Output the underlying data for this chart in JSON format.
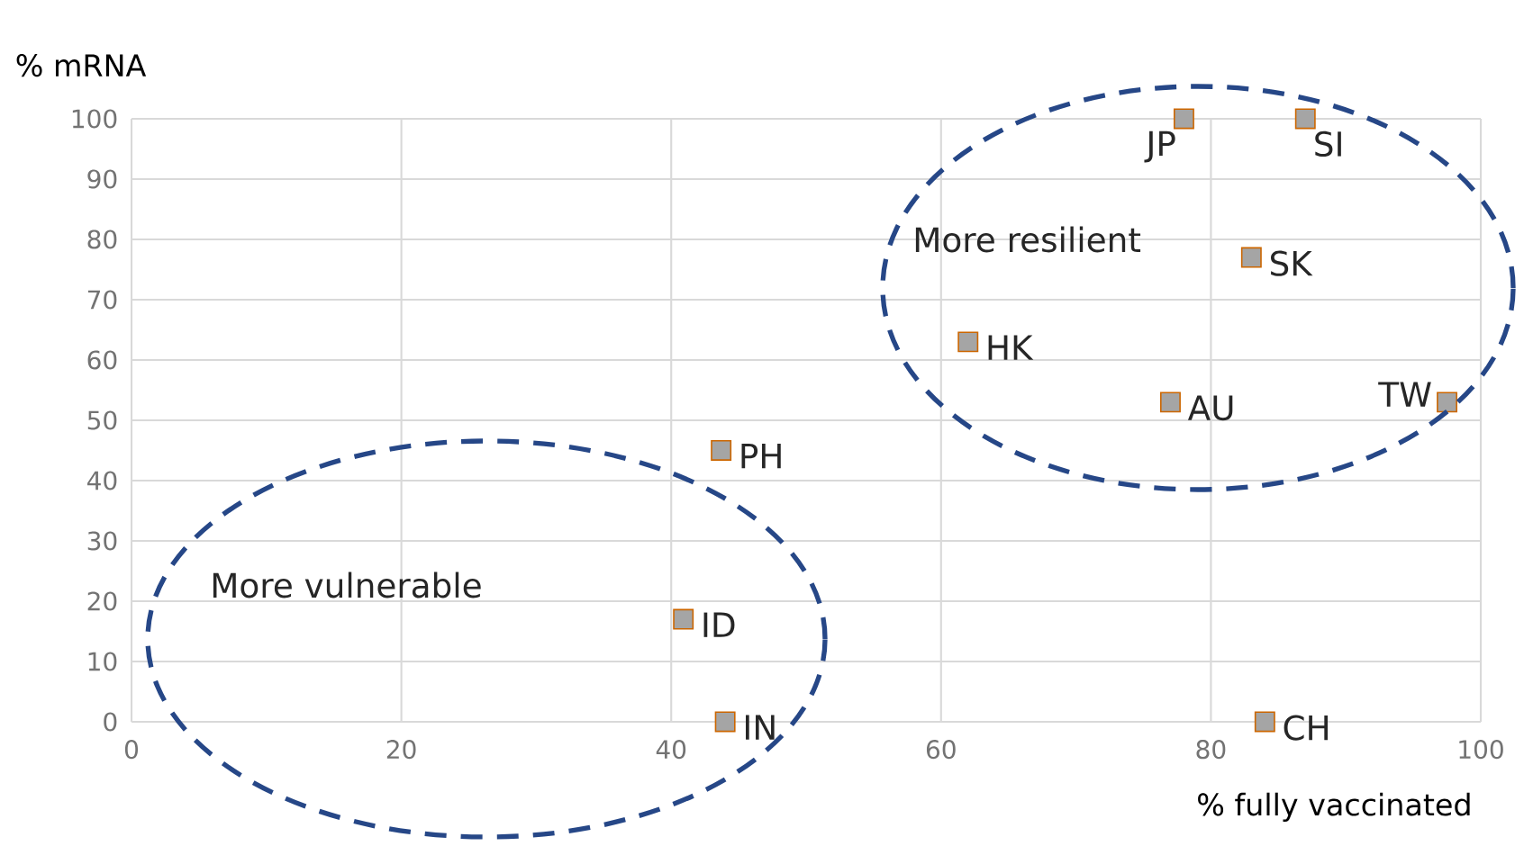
{
  "chart_data": {
    "type": "scatter",
    "xlabel": "% fully vaccinated",
    "ylabel": "% mRNA",
    "x": [
      78,
      87,
      83,
      62,
      77,
      97.5,
      43.7,
      40.9,
      44,
      84
    ],
    "series": [
      {
        "color": "#a5a5a5",
        "values": [
          100,
          100,
          77,
          63,
          53,
          53,
          45,
          17,
          0,
          0
        ]
      }
    ],
    "marker": "square",
    "xlim": [
      0,
      100
    ],
    "ylim": [
      0,
      100
    ],
    "xticks": [
      0,
      20,
      40,
      60,
      80,
      100
    ],
    "yticks": [
      0,
      10,
      20,
      30,
      40,
      50,
      60,
      70,
      80,
      90,
      100
    ],
    "grid": true,
    "annotations": [
      {
        "text": "JP",
        "x": 78,
        "y": 100
      },
      {
        "text": "SI",
        "x": 87,
        "y": 100
      },
      {
        "text": "SK",
        "x": 83,
        "y": 77
      },
      {
        "text": "HK",
        "x": 62,
        "y": 63
      },
      {
        "text": "AU",
        "x": 77,
        "y": 53
      },
      {
        "text": "TW",
        "x": 97.5,
        "y": 53
      },
      {
        "text": "PH",
        "x": 43.7,
        "y": 45
      },
      {
        "text": "ID",
        "x": 40.9,
        "y": 17
      },
      {
        "text": "IN",
        "x": 44,
        "y": 0
      },
      {
        "text": "CH",
        "x": 84,
        "y": 0
      },
      "More resilient",
      "More vulnerable"
    ]
  }
}
